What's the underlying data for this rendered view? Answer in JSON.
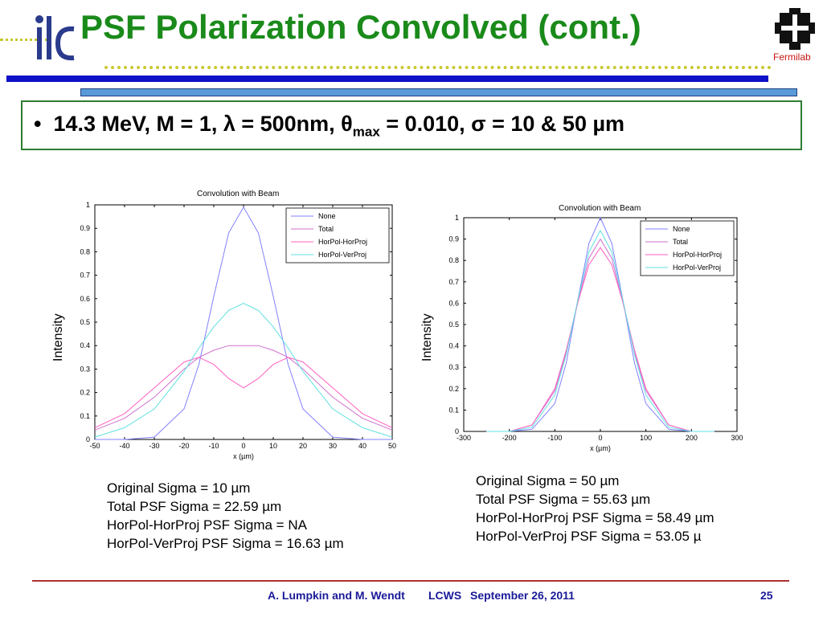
{
  "slide": {
    "title": "PSF Polarization Convolved (cont.)",
    "logo_left": "ilc",
    "logo_right": "Fermilab",
    "bullet": {
      "prefix": "14.3 MeV, M = 1, λ = 500nm, θ",
      "sub": "max",
      "suffix": " = 0.010, σ = 10 & 50 µm"
    },
    "left_stats": [
      "Original Sigma = 10 µm",
      "Total PSF Sigma = 22.59 µm",
      "HorPol-HorProj PSF Sigma =  NA",
      "HorPol-VerProj PSF Sigma = 16.63 µm"
    ],
    "right_stats": [
      "Original Sigma = 50 µm",
      "Total PSF Sigma = 55.63 µm",
      "HorPol-HorProj PSF Sigma = 58.49 µm",
      "HorPol-VerProj PSF Sigma = 53.05 µ"
    ],
    "footer": {
      "authors": "A. Lumpkin and M. Wendt",
      "event": "LCWS",
      "date": "September 26, 2011",
      "page": "25"
    },
    "colors": {
      "title": "#1a8a1a",
      "rule_blue": "#1010c8",
      "footer": "#1a1a9a",
      "box": "#2e7d32",
      "dots": "#c8c832"
    }
  },
  "chart_data": [
    {
      "type": "line",
      "title": "Convolution with Beam",
      "xlabel": "x (µm)",
      "ylabel": "Intensity",
      "xlim": [
        -50,
        50
      ],
      "ylim": [
        0,
        1
      ],
      "xticks": [
        -50,
        -40,
        -30,
        -20,
        -10,
        0,
        10,
        20,
        30,
        40,
        50
      ],
      "yticks": [
        0,
        0.1,
        0.2,
        0.3,
        0.4,
        0.5,
        0.6,
        0.7,
        0.8,
        0.9,
        1
      ],
      "legend": "top-right",
      "x": [
        -50,
        -40,
        -30,
        -20,
        -15,
        -10,
        -5,
        0,
        5,
        10,
        15,
        20,
        30,
        40,
        50
      ],
      "series": [
        {
          "name": "None",
          "color": "#8080ff",
          "values": [
            0.0,
            0.0,
            0.01,
            0.13,
            0.32,
            0.61,
            0.88,
            0.99,
            0.88,
            0.61,
            0.32,
            0.13,
            0.01,
            0.0,
            0.0
          ]
        },
        {
          "name": "Total",
          "color": "#d070d0",
          "values": [
            0.04,
            0.09,
            0.18,
            0.3,
            0.35,
            0.38,
            0.4,
            0.4,
            0.4,
            0.38,
            0.35,
            0.3,
            0.18,
            0.09,
            0.04
          ]
        },
        {
          "name": "HorPol-HorProj",
          "color": "#ff60c0",
          "values": [
            0.05,
            0.11,
            0.22,
            0.33,
            0.35,
            0.32,
            0.26,
            0.22,
            0.26,
            0.32,
            0.35,
            0.33,
            0.22,
            0.11,
            0.05
          ]
        },
        {
          "name": "HorPol-VerProj",
          "color": "#60e0e0",
          "values": [
            0.01,
            0.05,
            0.13,
            0.29,
            0.39,
            0.48,
            0.55,
            0.58,
            0.55,
            0.48,
            0.39,
            0.29,
            0.13,
            0.05,
            0.01
          ]
        }
      ]
    },
    {
      "type": "line",
      "title": "Convolution with Beam",
      "xlabel": "x (µm)",
      "ylabel": "Intensity",
      "xlim": [
        -300,
        300
      ],
      "ylim": [
        0,
        1
      ],
      "xticks": [
        -300,
        -200,
        -100,
        0,
        100,
        200,
        300
      ],
      "yticks": [
        0,
        0.1,
        0.2,
        0.3,
        0.4,
        0.5,
        0.6,
        0.7,
        0.8,
        0.9,
        1
      ],
      "legend": "top-right",
      "x": [
        -250,
        -200,
        -150,
        -100,
        -75,
        -50,
        -25,
        0,
        25,
        50,
        75,
        100,
        150,
        200,
        250
      ],
      "series": [
        {
          "name": "None",
          "color": "#8080ff",
          "values": [
            0.0,
            0.0,
            0.01,
            0.13,
            0.32,
            0.61,
            0.88,
            1.0,
            0.88,
            0.61,
            0.32,
            0.13,
            0.01,
            0.0,
            0.0
          ]
        },
        {
          "name": "Total",
          "color": "#d070d0",
          "values": [
            0.0,
            0.0,
            0.03,
            0.19,
            0.37,
            0.6,
            0.81,
            0.9,
            0.81,
            0.6,
            0.37,
            0.19,
            0.03,
            0.0,
            0.0
          ]
        },
        {
          "name": "HorPol-HorProj",
          "color": "#ff60c0",
          "values": [
            0.0,
            0.0,
            0.03,
            0.2,
            0.38,
            0.6,
            0.78,
            0.86,
            0.78,
            0.6,
            0.38,
            0.2,
            0.03,
            0.0,
            0.0
          ]
        },
        {
          "name": "HorPol-VerProj",
          "color": "#60e0e0",
          "values": [
            0.0,
            0.0,
            0.02,
            0.17,
            0.36,
            0.61,
            0.84,
            0.94,
            0.84,
            0.61,
            0.36,
            0.17,
            0.02,
            0.0,
            0.0
          ]
        }
      ]
    }
  ]
}
